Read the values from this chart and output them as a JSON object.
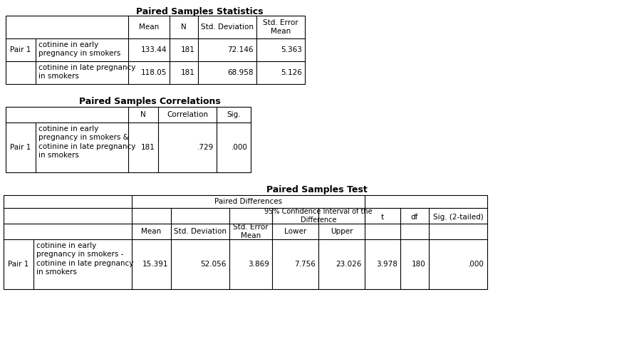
{
  "title1": "Paired Samples Statistics",
  "title2": "Paired Samples Correlations",
  "title3": "Paired Samples Test",
  "bg_color": "#ffffff",
  "t1_row1_vals": [
    "133.44",
    "181",
    "72.146",
    "5.363"
  ],
  "t1_row2_vals": [
    "118.05",
    "181",
    "68.958",
    "5.126"
  ],
  "t2_row_vals": [
    "181",
    ".729",
    ".000"
  ],
  "t3_row_vals": [
    "15.391",
    "52.056",
    "3.869",
    "7.756",
    "23.026",
    "3.978",
    "180",
    ".000"
  ]
}
